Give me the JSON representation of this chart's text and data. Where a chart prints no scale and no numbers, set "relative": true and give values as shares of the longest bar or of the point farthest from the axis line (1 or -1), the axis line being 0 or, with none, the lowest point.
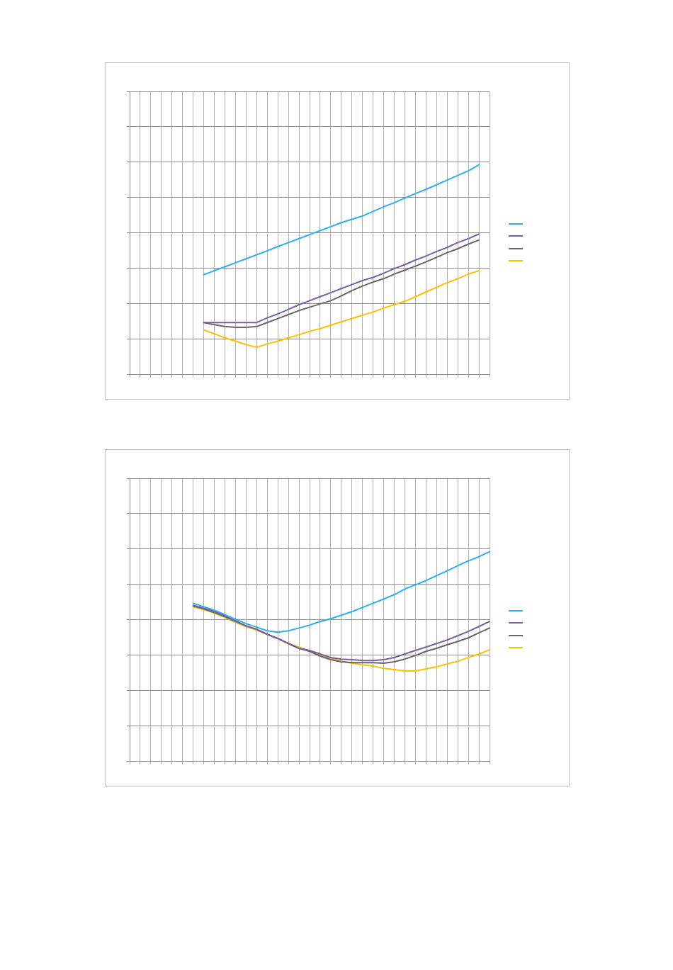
{
  "chart_data": [
    {
      "type": "line",
      "relative": true,
      "grid": true,
      "marker": "none",
      "categories": [
        null,
        null,
        null,
        null,
        null,
        null,
        null,
        null,
        null,
        null,
        null,
        null,
        null,
        null,
        null,
        null,
        null,
        null,
        null,
        null,
        null,
        null,
        null,
        null,
        null,
        null,
        null,
        null,
        null,
        null,
        null,
        null,
        null,
        null,
        null
      ],
      "series": [
        {
          "color": "#29b0f0",
          "values": [
            null,
            null,
            null,
            null,
            null,
            null,
            null,
            0.476,
            0.495,
            0.514,
            0.533,
            0.552,
            0.571,
            0.59,
            0.61,
            0.629,
            0.648,
            0.667,
            0.686,
            0.705,
            0.724,
            0.74,
            0.756,
            0.778,
            0.8,
            0.819,
            0.841,
            0.863,
            0.883,
            0.905,
            0.927,
            0.949,
            0.971,
            1,
            null
          ]
        },
        {
          "color": "#7b5ea7",
          "values": [
            null,
            null,
            null,
            null,
            null,
            null,
            null,
            0.248,
            0.248,
            0.248,
            0.248,
            0.248,
            0.248,
            0.27,
            0.289,
            0.311,
            0.333,
            0.352,
            0.371,
            0.39,
            0.41,
            0.429,
            0.448,
            0.463,
            0.483,
            0.505,
            0.524,
            0.546,
            0.565,
            0.587,
            0.606,
            0.629,
            0.648,
            0.67,
            null
          ]
        },
        {
          "color": "#666666",
          "values": [
            null,
            null,
            null,
            null,
            null,
            null,
            null,
            0.248,
            0.238,
            0.229,
            0.225,
            0.225,
            0.229,
            0.248,
            0.267,
            0.286,
            0.305,
            0.321,
            0.337,
            0.352,
            0.375,
            0.4,
            0.422,
            0.441,
            0.457,
            0.479,
            0.498,
            0.517,
            0.537,
            0.559,
            0.581,
            0.6,
            0.622,
            0.641,
            null
          ]
        },
        {
          "color": "#ffc000",
          "values": [
            null,
            null,
            null,
            null,
            null,
            null,
            null,
            0.213,
            0.194,
            0.175,
            0.159,
            0.143,
            0.13,
            0.146,
            0.159,
            0.175,
            0.19,
            0.206,
            0.219,
            0.235,
            0.251,
            0.267,
            0.283,
            0.298,
            0.317,
            0.333,
            0.349,
            0.371,
            0.394,
            0.416,
            0.438,
            0.457,
            0.479,
            0.495,
            null
          ]
        }
      ]
    },
    {
      "type": "line",
      "relative": true,
      "grid": true,
      "marker": "none",
      "categories": [
        null,
        null,
        null,
        null,
        null,
        null,
        null,
        null,
        null,
        null,
        null,
        null,
        null,
        null,
        null,
        null,
        null,
        null,
        null,
        null,
        null,
        null,
        null,
        null,
        null,
        null,
        null,
        null,
        null,
        null,
        null,
        null,
        null,
        null,
        null
      ],
      "series": [
        {
          "color": "#29b0f0",
          "values": [
            null,
            null,
            null,
            null,
            null,
            null,
            0.754,
            0.737,
            0.721,
            0.7,
            0.677,
            0.657,
            0.64,
            0.623,
            0.616,
            0.623,
            0.636,
            0.65,
            0.667,
            0.68,
            0.697,
            0.714,
            0.734,
            0.754,
            0.774,
            0.795,
            0.822,
            0.842,
            0.862,
            0.886,
            0.909,
            0.933,
            0.956,
            0.976,
            1
          ]
        },
        {
          "color": "#7b5ea7",
          "values": [
            null,
            null,
            null,
            null,
            null,
            null,
            0.744,
            0.731,
            0.717,
            0.694,
            0.67,
            0.646,
            0.63,
            0.606,
            0.586,
            0.562,
            0.539,
            0.529,
            0.512,
            0.495,
            0.488,
            0.485,
            0.481,
            0.481,
            0.485,
            0.495,
            0.512,
            0.529,
            0.545,
            0.562,
            0.579,
            0.599,
            0.62,
            0.643,
            0.667
          ]
        },
        {
          "color": "#666666",
          "values": [
            null,
            null,
            null,
            null,
            null,
            null,
            0.741,
            0.727,
            0.71,
            0.69,
            0.667,
            0.646,
            0.63,
            0.606,
            0.586,
            0.562,
            0.539,
            0.525,
            0.502,
            0.485,
            0.475,
            0.471,
            0.471,
            0.471,
            0.468,
            0.475,
            0.488,
            0.505,
            0.525,
            0.539,
            0.556,
            0.572,
            0.589,
            0.613,
            0.636
          ]
        },
        {
          "color": "#ffc000",
          "values": [
            null,
            null,
            null,
            null,
            null,
            null,
            0.737,
            0.724,
            0.707,
            0.687,
            0.663,
            0.643,
            0.626,
            0.606,
            0.586,
            0.562,
            0.545,
            0.525,
            0.508,
            0.492,
            0.478,
            0.468,
            0.461,
            0.455,
            0.444,
            0.438,
            0.431,
            0.431,
            0.441,
            0.451,
            0.465,
            0.478,
            0.495,
            0.512,
            0.532
          ]
        }
      ]
    }
  ]
}
